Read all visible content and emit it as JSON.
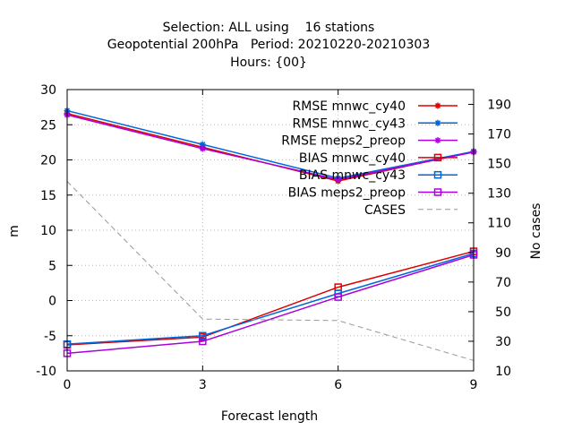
{
  "chart_data": {
    "type": "line",
    "title": [
      "Selection: ALL using    16 stations",
      "Geopotential 200hPa   Period: 20210220-20210303",
      "Hours: {00}"
    ],
    "xlabel": "Forecast length",
    "ylabel": "m",
    "y2label": "No cases",
    "x": [
      0,
      3,
      6,
      9
    ],
    "xlim": [
      0,
      9
    ],
    "ylim": [
      -10,
      30
    ],
    "y2lim": [
      10,
      200
    ],
    "xticks": [
      "0",
      "3",
      "6",
      "9"
    ],
    "yticks": [
      "-10",
      "-5",
      "0",
      "5",
      "10",
      "15",
      "20",
      "25",
      "30"
    ],
    "y2ticks": [
      "10",
      "30",
      "50",
      "70",
      "90",
      "110",
      "130",
      "150",
      "170",
      "190"
    ],
    "grid": true,
    "legend_position": "top-right",
    "series": [
      {
        "name": "RMSE mnwc_cy40",
        "axis": "y",
        "color": "#dd0000",
        "marker": "star",
        "dash": "solid",
        "values": [
          26.6,
          21.8,
          17.0,
          21.2
        ]
      },
      {
        "name": "RMSE mnwc_cy43",
        "axis": "y",
        "color": "#0066dd",
        "marker": "star",
        "dash": "solid",
        "values": [
          27.0,
          22.2,
          17.4,
          21.2
        ]
      },
      {
        "name": "RMSE meps2_preop",
        "axis": "y",
        "color": "#aa00dd",
        "marker": "star",
        "dash": "solid",
        "values": [
          26.4,
          21.6,
          17.2,
          21.1
        ]
      },
      {
        "name": "BIAS mnwc_cy40",
        "axis": "y",
        "color": "#dd0000",
        "marker": "square",
        "dash": "solid",
        "values": [
          -6.3,
          -5.2,
          1.9,
          7.0
        ]
      },
      {
        "name": "BIAS mnwc_cy43",
        "axis": "y",
        "color": "#0066dd",
        "marker": "square",
        "dash": "solid",
        "values": [
          -6.2,
          -5.0,
          1.0,
          6.7
        ]
      },
      {
        "name": "BIAS meps2_preop",
        "axis": "y",
        "color": "#aa00dd",
        "marker": "square",
        "dash": "solid",
        "values": [
          -7.5,
          -5.8,
          0.5,
          6.5
        ]
      },
      {
        "name": "CASES",
        "axis": "y2",
        "color": "#999999",
        "marker": "none",
        "dash": "dashed",
        "values": [
          138,
          45,
          44,
          17
        ]
      }
    ]
  }
}
